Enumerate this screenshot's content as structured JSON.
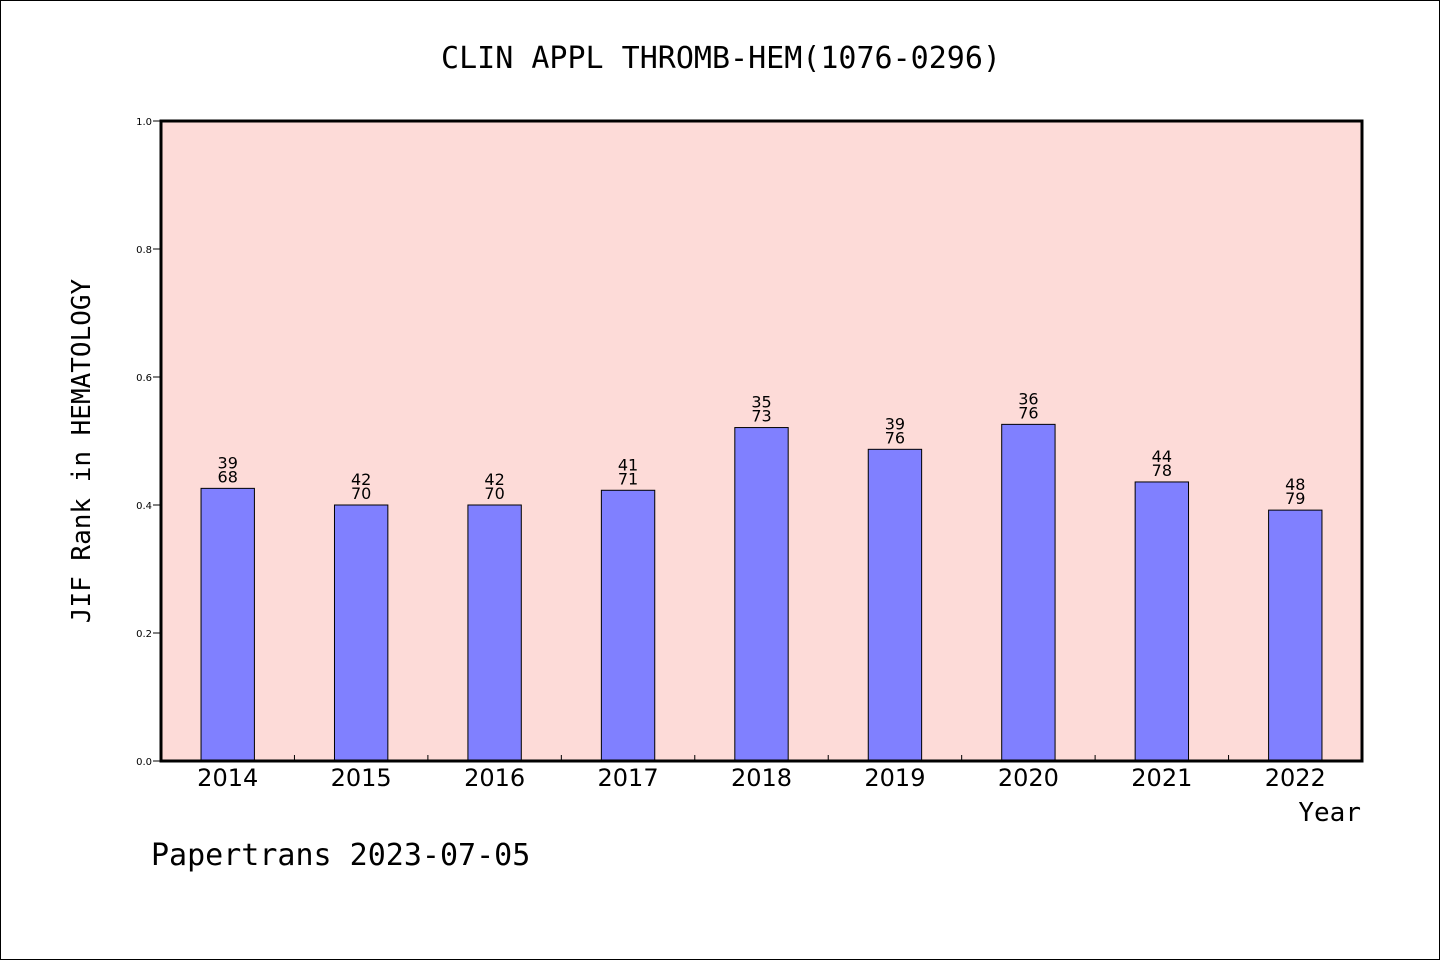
{
  "chart_data": {
    "type": "bar",
    "title": "CLIN APPL THROMB-HEM(1076-0296)",
    "xlabel": "Year",
    "ylabel": "JIF Rank in HEMATOLOGY",
    "ylim": [
      0,
      1.0
    ],
    "yticks": [
      "0.0",
      "0.2",
      "0.4",
      "0.6",
      "0.8",
      "1.0"
    ],
    "categories": [
      "2014",
      "2015",
      "2016",
      "2017",
      "2018",
      "2019",
      "2020",
      "2021",
      "2022"
    ],
    "values": [
      0.426,
      0.4,
      0.4,
      0.423,
      0.521,
      0.487,
      0.526,
      0.436,
      0.392
    ],
    "rank": [
      "39",
      "42",
      "42",
      "41",
      "35",
      "39",
      "36",
      "44",
      "48"
    ],
    "total": [
      "68",
      "70",
      "70",
      "71",
      "73",
      "76",
      "76",
      "78",
      "79"
    ],
    "grid": false,
    "colors": {
      "plot_background": "#FDDBD8",
      "bar_fill": "#8080FF",
      "bar_stroke": "#000000"
    }
  },
  "footer": {
    "text": "Papertrans 2023-07-05"
  }
}
